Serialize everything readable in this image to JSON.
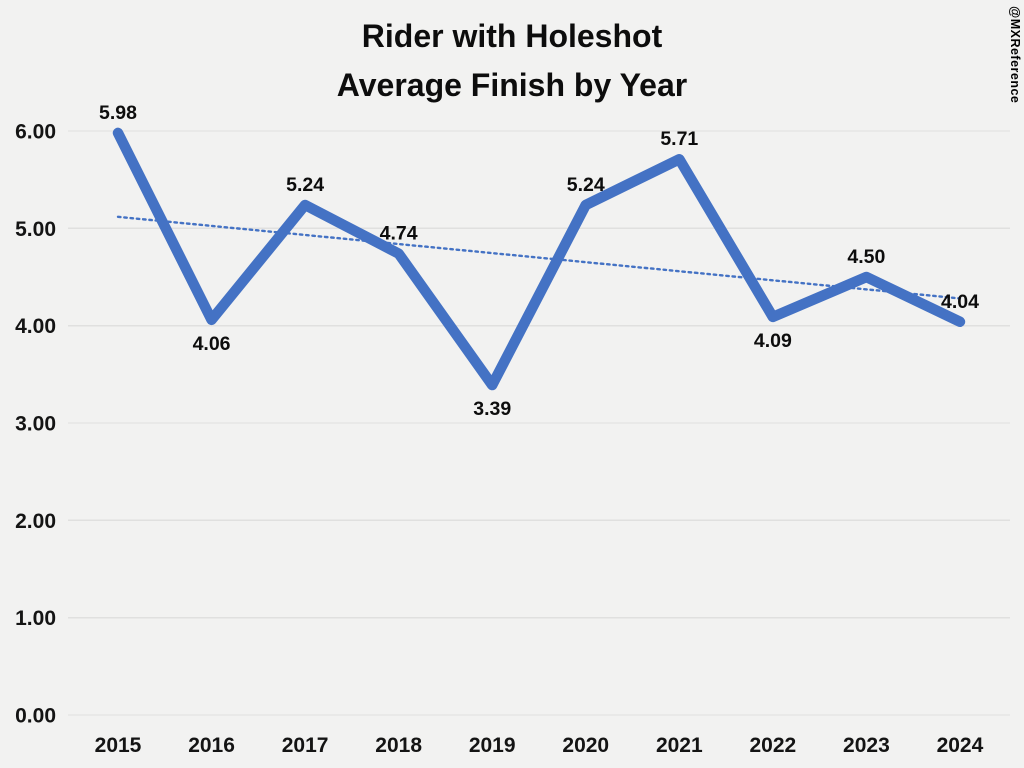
{
  "watermark": "@MXReference",
  "chart_data": {
    "type": "line",
    "title": "Rider with Holeshot Average Finish by Year",
    "title_lines": [
      "Rider with Holeshot",
      "Average Finish by Year"
    ],
    "categories": [
      "2015",
      "2016",
      "2017",
      "2018",
      "2019",
      "2020",
      "2021",
      "2022",
      "2023",
      "2024"
    ],
    "values": [
      5.98,
      4.06,
      5.24,
      4.74,
      3.39,
      5.24,
      5.71,
      4.09,
      4.5,
      4.04
    ],
    "value_labels": [
      "5.98",
      "4.06",
      "5.24",
      "4.74",
      "3.39",
      "5.24",
      "5.71",
      "4.09",
      "4.50",
      "4.04"
    ],
    "label_positions": [
      "above",
      "below",
      "above",
      "above",
      "below",
      "above",
      "above",
      "below",
      "above",
      "above"
    ],
    "y_ticks": [
      "6.00",
      "5.00",
      "4.00",
      "3.00",
      "2.00",
      "1.00",
      "0.00"
    ],
    "ylim": [
      0,
      6
    ],
    "xlabel": "",
    "ylabel": "",
    "grid": "horizontal",
    "legend": "none",
    "trendline": {
      "type": "linear",
      "style": "dotted"
    },
    "colors": {
      "series": "#4472C4",
      "trendline": "#4472C4",
      "background": "#f2f2f1",
      "gridline": "#e0e0df",
      "text": "#0d0d0d"
    }
  }
}
